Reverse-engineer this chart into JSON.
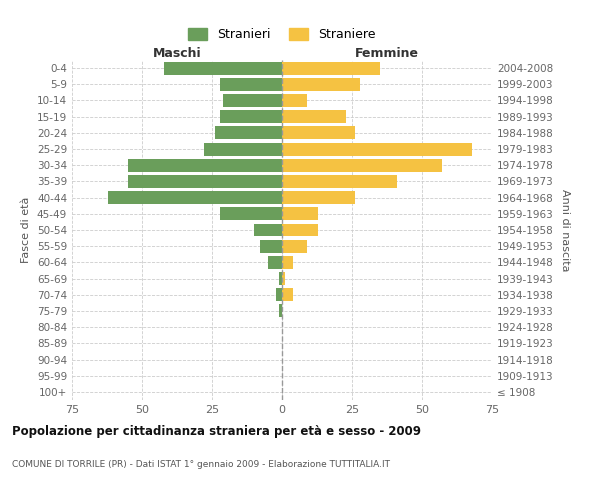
{
  "age_groups": [
    "100+",
    "95-99",
    "90-94",
    "85-89",
    "80-84",
    "75-79",
    "70-74",
    "65-69",
    "60-64",
    "55-59",
    "50-54",
    "45-49",
    "40-44",
    "35-39",
    "30-34",
    "25-29",
    "20-24",
    "15-19",
    "10-14",
    "5-9",
    "0-4"
  ],
  "birth_years": [
    "≤ 1908",
    "1909-1913",
    "1914-1918",
    "1919-1923",
    "1924-1928",
    "1929-1933",
    "1934-1938",
    "1939-1943",
    "1944-1948",
    "1949-1953",
    "1954-1958",
    "1959-1963",
    "1964-1968",
    "1969-1973",
    "1974-1978",
    "1979-1983",
    "1984-1988",
    "1989-1993",
    "1994-1998",
    "1999-2003",
    "2004-2008"
  ],
  "males": [
    0,
    0,
    0,
    0,
    0,
    1,
    2,
    1,
    5,
    8,
    10,
    22,
    62,
    55,
    55,
    28,
    24,
    22,
    21,
    22,
    42
  ],
  "females": [
    0,
    0,
    0,
    0,
    0,
    0,
    4,
    1,
    4,
    9,
    13,
    13,
    26,
    41,
    57,
    68,
    26,
    23,
    9,
    28,
    35
  ],
  "male_color": "#6a9e5b",
  "female_color": "#f5c242",
  "title": "Popolazione per cittadinanza straniera per età e sesso - 2009",
  "subtitle": "COMUNE DI TORRILE (PR) - Dati ISTAT 1° gennaio 2009 - Elaborazione TUTTITALIA.IT",
  "left_label": "Maschi",
  "right_label": "Femmine",
  "ylabel_left": "Fasce di età",
  "ylabel_right": "Anni di nascita",
  "xlim": 75,
  "legend_male": "Stranieri",
  "legend_female": "Straniere",
  "bg_color": "#ffffff",
  "grid_color": "#cccccc",
  "bar_height": 0.8
}
